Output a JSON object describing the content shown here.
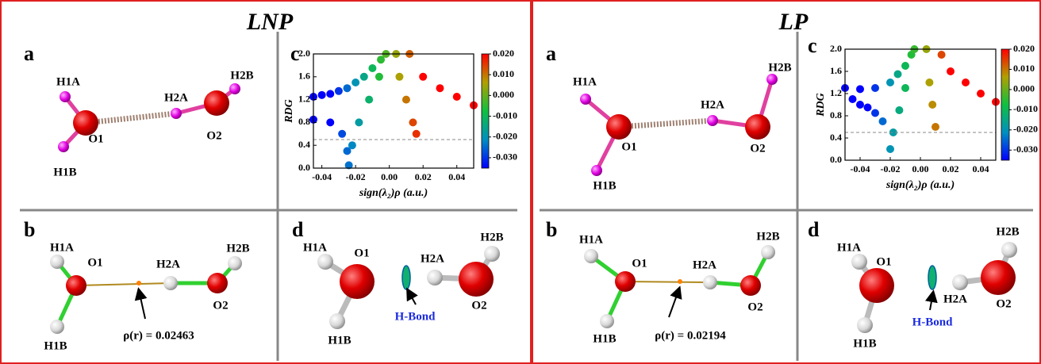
{
  "panels": [
    {
      "title": "LNP",
      "a": {
        "letter": "a",
        "labels": [
          "H1A",
          "O1",
          "H1B",
          "H2A",
          "O2",
          "H2B"
        ]
      },
      "b": {
        "letter": "b",
        "labels": [
          "H1A",
          "O1",
          "H1B",
          "H2A",
          "O2",
          "H2B"
        ],
        "annotation": "ρ(r) = 0.02463"
      },
      "d": {
        "letter": "d",
        "labels": [
          "H1A",
          "O1",
          "H1B",
          "H2A",
          "O2",
          "H2B"
        ],
        "annotation": "H-Bond"
      }
    },
    {
      "title": "LP",
      "a": {
        "letter": "a",
        "labels": [
          "H1A",
          "O1",
          "H1B",
          "H2A",
          "O2",
          "H2B"
        ]
      },
      "b": {
        "letter": "b",
        "labels": [
          "H1A",
          "O1",
          "H1B",
          "H2A",
          "O2",
          "H2B"
        ],
        "annotation": "ρ(r) = 0.02194"
      },
      "d": {
        "letter": "d",
        "labels": [
          "H1A",
          "O1",
          "H1B",
          "H2A",
          "O2",
          "H2B"
        ],
        "annotation": "H-Bond"
      }
    }
  ],
  "chart_data": [
    {
      "type": "scatter",
      "letter": "c",
      "xlabel": "sign(λ₂)ρ (a.u.)",
      "ylabel": "RDG",
      "xlim": [
        -0.045,
        0.05
      ],
      "xticks": [
        -0.04,
        -0.02,
        {
          "value": 0,
          "label": "0.00"
        },
        0.02,
        0.04
      ],
      "ylim": [
        0,
        2
      ],
      "yticks": [
        {
          "value": 0,
          "label": "0.0"
        },
        0.4,
        0.8,
        1.2,
        1.6,
        {
          "value": 2,
          "label": "2.0"
        }
      ],
      "threshold": 0.5,
      "colorbar": {
        "lim": [
          -0.035,
          0.02
        ],
        "colors": [
          "#0000ff",
          "#0090c0",
          "#10c040",
          "#b0a000",
          "#ff0000"
        ],
        "ticks": [
          {
            "value": 0.02,
            "label": "0.020"
          },
          {
            "value": 0.01,
            "label": "0.010"
          },
          {
            "value": 0,
            "label": "0.000"
          },
          {
            "value": -0.01,
            "label": "-0.010"
          },
          {
            "value": -0.02,
            "label": "-0.020"
          },
          {
            "value": -0.03,
            "label": "-0.030"
          }
        ]
      },
      "series": [
        {
          "x": [
            -0.045,
            -0.04,
            -0.035,
            -0.03,
            -0.025,
            -0.02,
            -0.015,
            -0.01,
            -0.005,
            -0.002,
            -0.045,
            -0.035,
            -0.028,
            -0.025,
            -0.024,
            -0.022,
            -0.018,
            -0.012,
            -0.006
          ],
          "y": [
            1.25,
            1.28,
            1.3,
            1.35,
            1.4,
            1.5,
            1.6,
            1.75,
            1.9,
            2.0,
            0.85,
            0.8,
            0.6,
            0.3,
            0.05,
            0.4,
            0.8,
            1.2,
            1.6
          ]
        },
        {
          "x": [
            0.004,
            0.006,
            0.01,
            0.014,
            0.016,
            0.012,
            0.02,
            0.03,
            0.04,
            0.05
          ],
          "y": [
            2.0,
            1.6,
            1.2,
            0.8,
            0.6,
            2.0,
            1.6,
            1.4,
            1.25,
            1.1
          ]
        }
      ]
    },
    {
      "type": "scatter",
      "letter": "c",
      "xlabel": "sign(λ₂)ρ (a.u.)",
      "ylabel": "RDG",
      "xlim": [
        -0.05,
        0.05
      ],
      "xticks": [
        -0.04,
        -0.02,
        {
          "value": 0,
          "label": "0.00"
        },
        0.02,
        0.04
      ],
      "ylim": [
        0,
        2
      ],
      "yticks": [
        {
          "value": 0,
          "label": "0.0"
        },
        0.4,
        0.8,
        1.2,
        1.6,
        {
          "value": 2,
          "label": "2.0"
        }
      ],
      "threshold": 0.5,
      "colorbar": {
        "lim": [
          -0.035,
          0.02
        ],
        "colors": [
          "#0000ff",
          "#0090c0",
          "#10c040",
          "#b0a000",
          "#ff0000"
        ],
        "ticks": [
          {
            "value": 0.02,
            "label": "0.020"
          },
          {
            "value": 0.01,
            "label": "0.010"
          },
          {
            "value": 0,
            "label": "0.000"
          },
          {
            "value": -0.01,
            "label": "-0.010"
          },
          {
            "value": -0.02,
            "label": "-0.020"
          },
          {
            "value": -0.03,
            "label": "-0.030"
          }
        ]
      },
      "series": [
        {
          "x": [
            -0.05,
            -0.04,
            -0.03,
            -0.02,
            -0.015,
            -0.01,
            -0.006,
            -0.004,
            -0.045,
            -0.04,
            -0.035,
            -0.03,
            -0.025,
            -0.02,
            -0.018,
            -0.014,
            -0.01
          ],
          "y": [
            1.3,
            1.28,
            1.3,
            1.4,
            1.55,
            1.7,
            1.9,
            2.0,
            1.1,
            1.0,
            0.95,
            0.85,
            0.7,
            0.2,
            0.5,
            0.9,
            1.3
          ]
        },
        {
          "x": [
            0.004,
            0.006,
            0.008,
            0.01,
            0.014,
            0.02,
            0.03,
            0.04,
            0.05
          ],
          "y": [
            2.0,
            1.4,
            1.0,
            0.6,
            1.9,
            1.6,
            1.4,
            1.2,
            1.05
          ]
        }
      ]
    }
  ]
}
